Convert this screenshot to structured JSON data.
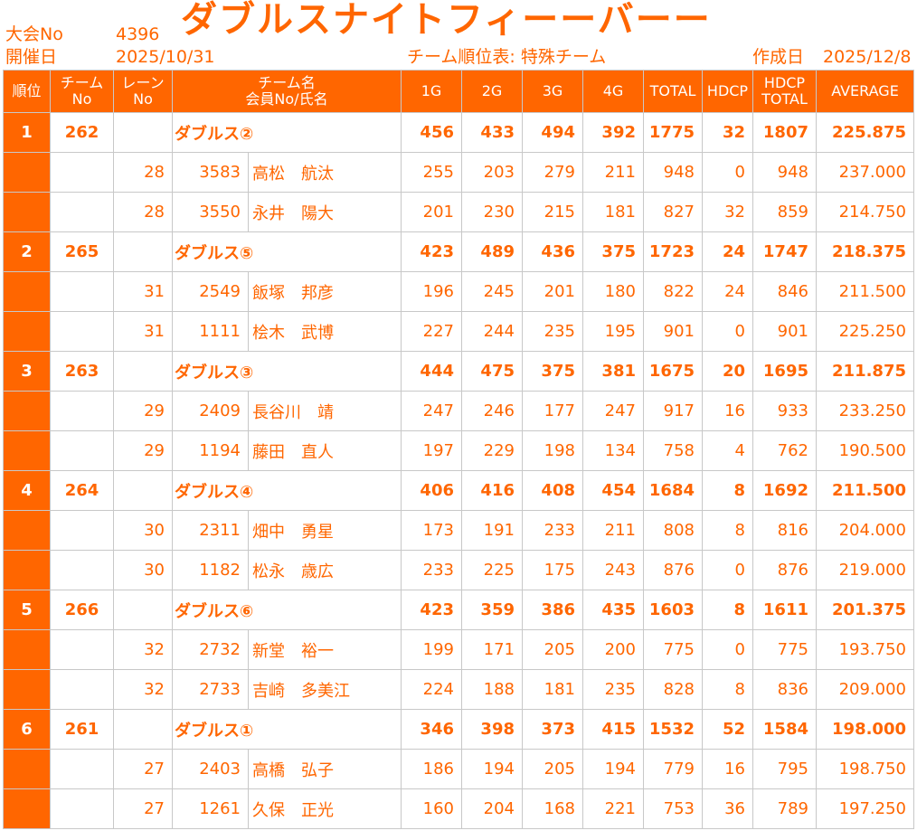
{
  "header": {
    "tournament_no_label": "大会No",
    "tournament_no": "4396",
    "date_label": "開催日",
    "date": "2025/10/31",
    "title": "ダブルスナイトフィーーバーー",
    "table_title": "チーム順位表: 特殊チーム",
    "created_label": "作成日",
    "created_date": "2025/12/8"
  },
  "columns": {
    "rank": "順位",
    "team_no_1": "チーム",
    "team_no_2": "No",
    "lane_1": "レーン",
    "lane_2": "No",
    "name_1": "チーム名",
    "name_2": "会員No/氏名",
    "g1": "1G",
    "g2": "2G",
    "g3": "3G",
    "g4": "4G",
    "total": "TOTAL",
    "hdcp": "HDCP",
    "hdcp_total_1": "HDCP",
    "hdcp_total_2": "TOTAL",
    "average": "AVERAGE"
  },
  "teams": [
    {
      "rank": "1",
      "team_no": "262",
      "name": "ダブルス②",
      "g1": "456",
      "g2": "433",
      "g3": "494",
      "g4": "392",
      "total": "1775",
      "hdcp": "32",
      "hdcp_total": "1807",
      "average": "225.875",
      "members": [
        {
          "lane": "28",
          "member_no": "3583",
          "name": "高松　航汰",
          "g1": "255",
          "g2": "203",
          "g3": "279",
          "g4": "211",
          "total": "948",
          "hdcp": "0",
          "hdcp_total": "948",
          "average": "237.000"
        },
        {
          "lane": "28",
          "member_no": "3550",
          "name": "永井　陽大",
          "g1": "201",
          "g2": "230",
          "g3": "215",
          "g4": "181",
          "total": "827",
          "hdcp": "32",
          "hdcp_total": "859",
          "average": "214.750"
        }
      ]
    },
    {
      "rank": "2",
      "team_no": "265",
      "name": "ダブルス⑤",
      "g1": "423",
      "g2": "489",
      "g3": "436",
      "g4": "375",
      "total": "1723",
      "hdcp": "24",
      "hdcp_total": "1747",
      "average": "218.375",
      "members": [
        {
          "lane": "31",
          "member_no": "2549",
          "name": "飯塚　邦彦",
          "g1": "196",
          "g2": "245",
          "g3": "201",
          "g4": "180",
          "total": "822",
          "hdcp": "24",
          "hdcp_total": "846",
          "average": "211.500"
        },
        {
          "lane": "31",
          "member_no": "1111",
          "name": "桧木　武博",
          "g1": "227",
          "g2": "244",
          "g3": "235",
          "g4": "195",
          "total": "901",
          "hdcp": "0",
          "hdcp_total": "901",
          "average": "225.250"
        }
      ]
    },
    {
      "rank": "3",
      "team_no": "263",
      "name": "ダブルス③",
      "g1": "444",
      "g2": "475",
      "g3": "375",
      "g4": "381",
      "total": "1675",
      "hdcp": "20",
      "hdcp_total": "1695",
      "average": "211.875",
      "members": [
        {
          "lane": "29",
          "member_no": "2409",
          "name": "長谷川　靖",
          "g1": "247",
          "g2": "246",
          "g3": "177",
          "g4": "247",
          "total": "917",
          "hdcp": "16",
          "hdcp_total": "933",
          "average": "233.250"
        },
        {
          "lane": "29",
          "member_no": "1194",
          "name": "藤田　直人",
          "g1": "197",
          "g2": "229",
          "g3": "198",
          "g4": "134",
          "total": "758",
          "hdcp": "4",
          "hdcp_total": "762",
          "average": "190.500"
        }
      ]
    },
    {
      "rank": "4",
      "team_no": "264",
      "name": "ダブルス④",
      "g1": "406",
      "g2": "416",
      "g3": "408",
      "g4": "454",
      "total": "1684",
      "hdcp": "8",
      "hdcp_total": "1692",
      "average": "211.500",
      "members": [
        {
          "lane": "30",
          "member_no": "2311",
          "name": "畑中　勇星",
          "g1": "173",
          "g2": "191",
          "g3": "233",
          "g4": "211",
          "total": "808",
          "hdcp": "8",
          "hdcp_total": "816",
          "average": "204.000"
        },
        {
          "lane": "30",
          "member_no": "1182",
          "name": "松永　歳広",
          "g1": "233",
          "g2": "225",
          "g3": "175",
          "g4": "243",
          "total": "876",
          "hdcp": "0",
          "hdcp_total": "876",
          "average": "219.000"
        }
      ]
    },
    {
      "rank": "5",
      "team_no": "266",
      "name": "ダブルス⑥",
      "g1": "423",
      "g2": "359",
      "g3": "386",
      "g4": "435",
      "total": "1603",
      "hdcp": "8",
      "hdcp_total": "1611",
      "average": "201.375",
      "members": [
        {
          "lane": "32",
          "member_no": "2732",
          "name": "新堂　裕一",
          "g1": "199",
          "g2": "171",
          "g3": "205",
          "g4": "200",
          "total": "775",
          "hdcp": "0",
          "hdcp_total": "775",
          "average": "193.750"
        },
        {
          "lane": "32",
          "member_no": "2733",
          "name": "吉崎　多美江",
          "g1": "224",
          "g2": "188",
          "g3": "181",
          "g4": "235",
          "total": "828",
          "hdcp": "8",
          "hdcp_total": "836",
          "average": "209.000"
        }
      ]
    },
    {
      "rank": "6",
      "team_no": "261",
      "name": "ダブルス①",
      "g1": "346",
      "g2": "398",
      "g3": "373",
      "g4": "415",
      "total": "1532",
      "hdcp": "52",
      "hdcp_total": "1584",
      "average": "198.000",
      "members": [
        {
          "lane": "27",
          "member_no": "2403",
          "name": "高橋　弘子",
          "g1": "186",
          "g2": "194",
          "g3": "205",
          "g4": "194",
          "total": "779",
          "hdcp": "16",
          "hdcp_total": "795",
          "average": "198.750"
        },
        {
          "lane": "27",
          "member_no": "1261",
          "name": "久保　正光",
          "g1": "160",
          "g2": "204",
          "g3": "168",
          "g4": "221",
          "total": "753",
          "hdcp": "36",
          "hdcp_total": "789",
          "average": "197.250"
        }
      ]
    }
  ]
}
